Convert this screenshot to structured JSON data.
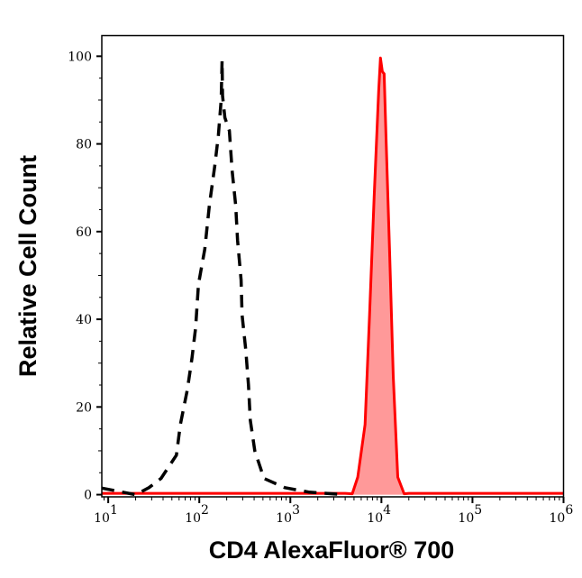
{
  "chart_data": {
    "type": "area",
    "title": "",
    "xlabel": "CD4 AlexaFluor® 700",
    "ylabel": "Relative Cell Count",
    "xscale": "log",
    "xlim": [
      8.5,
      1000000
    ],
    "ylim": [
      -0.5,
      104.7
    ],
    "grid": false,
    "legend": "none",
    "x_ticks": [
      {
        "value": 10,
        "base": "10",
        "exp": "1"
      },
      {
        "value": 100,
        "base": "10",
        "exp": "2"
      },
      {
        "value": 1000,
        "base": "10",
        "exp": "3"
      },
      {
        "value": 10000,
        "base": "10",
        "exp": "4"
      },
      {
        "value": 100000,
        "base": "10",
        "exp": "5"
      },
      {
        "value": 1000000,
        "base": "10",
        "exp": "6"
      }
    ],
    "y_ticks": [
      "0",
      "20",
      "40",
      "60",
      "80",
      "100"
    ],
    "series": [
      {
        "style": "dashed",
        "color": "#000000",
        "fill": "none",
        "x": [
          8.5,
          20,
          28,
          38,
          56,
          62,
          74,
          83,
          91,
          98,
          115,
          129,
          148,
          162,
          174,
          178,
          180,
          191,
          214,
          229,
          251,
          263,
          288,
          295,
          324,
          347,
          363,
          407,
          513,
          871,
          1585,
          4000
        ],
        "y": [
          1.5,
          0,
          1.6,
          3.7,
          9,
          16,
          24,
          31,
          38,
          48,
          56,
          66,
          75,
          82,
          90,
          99,
          91,
          86,
          83,
          74,
          66,
          58,
          49,
          41,
          33,
          25,
          17,
          10,
          3.7,
          1.6,
          0.6,
          0
        ]
      },
      {
        "style": "solid",
        "color": "#ff0000",
        "fill": "#ff9999",
        "x": [
          8.5,
          4000,
          4786,
          5495,
          6607,
          7413,
          8318,
          9333,
          9772,
          10233,
          10715,
          11220,
          12303,
          13490,
          15136,
          17783,
          20000,
          1000000
        ],
        "y": [
          0.3,
          0.3,
          0.2,
          4,
          16,
          41,
          68,
          92,
          99.6,
          96.5,
          96,
          82,
          55,
          27,
          4,
          0.2,
          0.3,
          0.3
        ]
      }
    ]
  }
}
